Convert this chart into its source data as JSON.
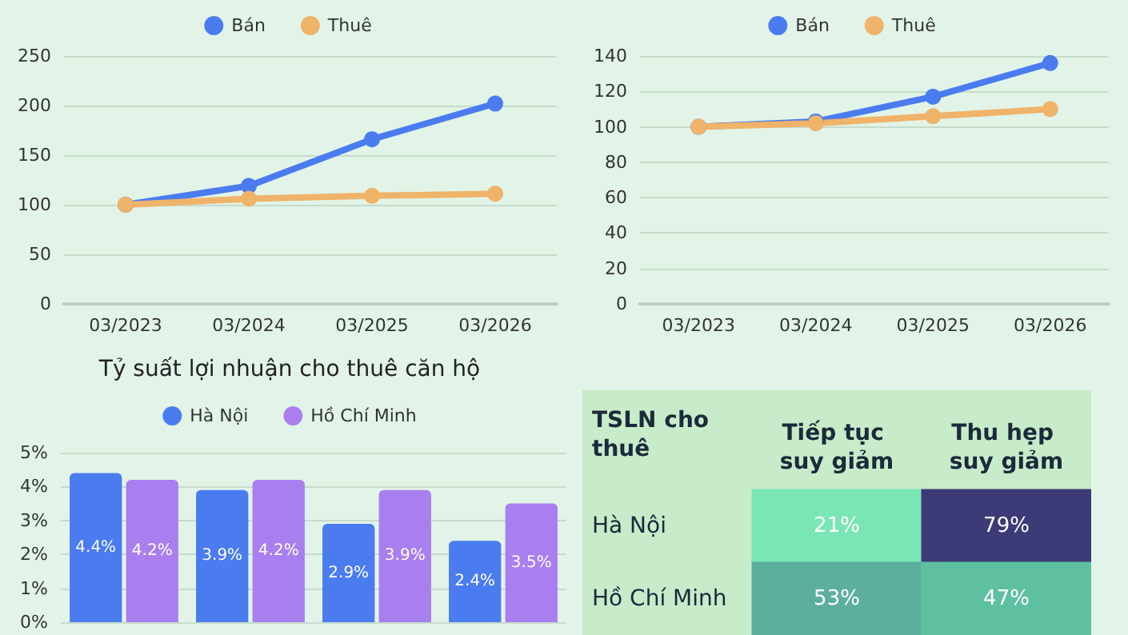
{
  "chart_data": [
    {
      "type": "line",
      "categories": [
        "03/2023",
        "03/2024",
        "03/2025",
        "03/2026"
      ],
      "series": [
        {
          "name": "Bán",
          "color": "#4a7cf0",
          "values": [
            100,
            119,
            166,
            202
          ]
        },
        {
          "name": "Thuê",
          "color": "#f0b36a",
          "values": [
            100,
            106,
            109,
            111
          ]
        }
      ],
      "ylim": [
        0,
        250
      ],
      "yticks": [
        0,
        50,
        100,
        150,
        200,
        250
      ],
      "grid": "y",
      "legend": "top",
      "marker": "circle",
      "line_style": "solid"
    },
    {
      "type": "line",
      "categories": [
        "03/2023",
        "03/2024",
        "03/2025",
        "03/2026"
      ],
      "series": [
        {
          "name": "Bán",
          "color": "#4a7cf0",
          "values": [
            100,
            103,
            117,
            136
          ]
        },
        {
          "name": "Thuê",
          "color": "#f0b36a",
          "values": [
            100,
            102,
            106,
            110
          ]
        }
      ],
      "ylim": [
        0,
        140
      ],
      "yticks": [
        0,
        20,
        40,
        60,
        80,
        100,
        120,
        140
      ],
      "grid": "y",
      "legend": "top",
      "marker": "circle",
      "line_style": "solid"
    },
    {
      "type": "bar",
      "title": "Tỷ suất lợi nhuận cho thuê căn hộ",
      "categories": [
        null,
        null,
        null,
        null
      ],
      "series": [
        {
          "name": "Hà Nội",
          "color": "#4a7cf0",
          "values": [
            4.4,
            3.9,
            2.9,
            2.4
          ],
          "value_labels": [
            "4.4%",
            "3.9%",
            "2.9%",
            "2.4%"
          ]
        },
        {
          "name": "Hồ Chí Minh",
          "color": "#a97ff0",
          "values": [
            4.2,
            4.2,
            3.9,
            3.5
          ],
          "value_labels": [
            "4.2%",
            "4.2%",
            "3.9%",
            "3.5%"
          ]
        }
      ],
      "ylim": [
        0,
        5
      ],
      "yticks": [
        {
          "value": 0,
          "label": "0%"
        },
        {
          "value": 1,
          "label": "1%"
        },
        {
          "value": 2,
          "label": "2%"
        },
        {
          "value": 3,
          "label": "3%"
        },
        {
          "value": 4,
          "label": "4%"
        },
        {
          "value": 5,
          "label": "5%"
        }
      ],
      "grid": "y",
      "legend": "top"
    },
    {
      "type": "heatmap",
      "ylabel": "TSLN cho thuê",
      "categories": [
        "Tiếp tục suy giảm",
        "Thu hẹp suy giảm"
      ],
      "y_categories": [
        "Hà Nội",
        "Hồ Chí Minh"
      ],
      "cells": [
        [
          21,
          79
        ],
        [
          53,
          47
        ]
      ],
      "cell_labels": [
        [
          "21%",
          "79%"
        ],
        [
          "53%",
          "47%"
        ]
      ]
    }
  ]
}
